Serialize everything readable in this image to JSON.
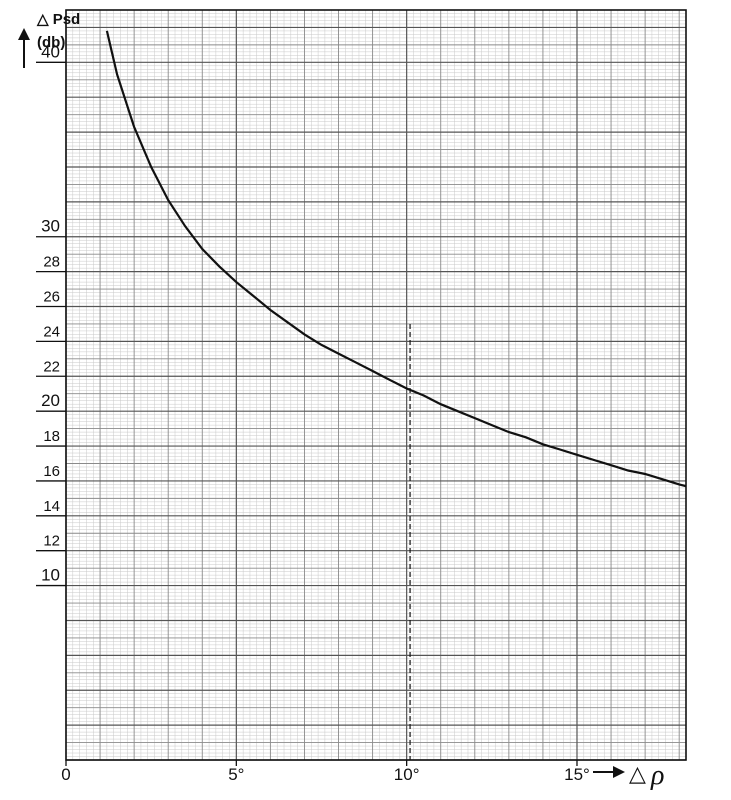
{
  "chart_data": {
    "type": "line",
    "ylabel_line1": "△ Psd",
    "ylabel_line2": "(db)",
    "xlabel_symbol_prefix": "△",
    "xlabel_symbol": "ρ",
    "x_tick_labels": [
      "0",
      "5°",
      "10°",
      "15°"
    ],
    "x_ticks": [
      0,
      5,
      10,
      15
    ],
    "xlim": [
      0,
      18.2
    ],
    "ylim": [
      0,
      43
    ],
    "y_ticks": [
      {
        "value": 10,
        "label": "10",
        "major": true
      },
      {
        "value": 12,
        "label": "12",
        "major": false
      },
      {
        "value": 14,
        "label": "14",
        "major": false
      },
      {
        "value": 16,
        "label": "16",
        "major": false
      },
      {
        "value": 18,
        "label": "18",
        "major": false
      },
      {
        "value": 20,
        "label": "20",
        "major": true
      },
      {
        "value": 22,
        "label": "22",
        "major": false
      },
      {
        "value": 24,
        "label": "24",
        "major": false
      },
      {
        "value": 26,
        "label": "26",
        "major": false
      },
      {
        "value": 28,
        "label": "28",
        "major": false
      },
      {
        "value": 30,
        "label": "30",
        "major": true
      },
      {
        "value": 40,
        "label": "40",
        "major": true
      }
    ],
    "reference_line_x": 10.1,
    "grid": true,
    "series": [
      {
        "color": "#111111",
        "x": [
          1.2,
          1.5,
          2.0,
          2.5,
          3.0,
          3.5,
          4.0,
          4.5,
          5.0,
          5.5,
          6.0,
          6.5,
          7.0,
          7.5,
          8.0,
          8.5,
          9.0,
          9.5,
          10.0,
          10.5,
          11.0,
          11.5,
          12.0,
          12.5,
          13.0,
          13.5,
          14.0,
          14.5,
          15.0,
          15.5,
          16.0,
          16.5,
          17.0,
          17.5,
          18.0,
          18.2
        ],
        "y": [
          41.8,
          39.3,
          36.3,
          34.0,
          32.1,
          30.6,
          29.3,
          28.3,
          27.4,
          26.6,
          25.8,
          25.1,
          24.4,
          23.8,
          23.3,
          22.8,
          22.3,
          21.8,
          21.3,
          20.9,
          20.4,
          20.0,
          19.6,
          19.2,
          18.8,
          18.5,
          18.1,
          17.8,
          17.5,
          17.2,
          16.9,
          16.6,
          16.4,
          16.1,
          15.8,
          15.7
        ]
      }
    ]
  }
}
